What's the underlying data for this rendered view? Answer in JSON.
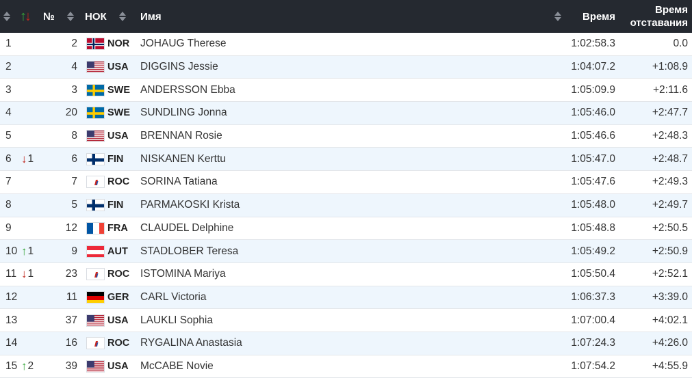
{
  "header": {
    "change_icon": "up-down-arrows-icon",
    "bib_label": "№",
    "noc_label": "НОК",
    "name_label": "Имя",
    "time_label": "Время",
    "gap_label_1": "Время",
    "gap_label_2": "отставания"
  },
  "colors": {
    "header_bg": "#252930",
    "row_alt": "#eef6fd",
    "up": "#35a639",
    "down": "#c0271e"
  },
  "rows": [
    {
      "rank": "1",
      "change": "",
      "dir": "",
      "bib": "2",
      "flag": "NOR",
      "noc": "NOR",
      "name": "JOHAUG Therese",
      "time": "1:02:58.3",
      "gap": "0.0"
    },
    {
      "rank": "2",
      "change": "",
      "dir": "",
      "bib": "4",
      "flag": "USA",
      "noc": "USA",
      "name": "DIGGINS Jessie",
      "time": "1:04:07.2",
      "gap": "+1:08.9"
    },
    {
      "rank": "3",
      "change": "",
      "dir": "",
      "bib": "3",
      "flag": "SWE",
      "noc": "SWE",
      "name": "ANDERSSON Ebba",
      "time": "1:05:09.9",
      "gap": "+2:11.6"
    },
    {
      "rank": "4",
      "change": "",
      "dir": "",
      "bib": "20",
      "flag": "SWE",
      "noc": "SWE",
      "name": "SUNDLING Jonna",
      "time": "1:05:46.0",
      "gap": "+2:47.7"
    },
    {
      "rank": "5",
      "change": "",
      "dir": "",
      "bib": "8",
      "flag": "USA",
      "noc": "USA",
      "name": "BRENNAN Rosie",
      "time": "1:05:46.6",
      "gap": "+2:48.3"
    },
    {
      "rank": "6",
      "change": "1",
      "dir": "down",
      "bib": "6",
      "flag": "FIN",
      "noc": "FIN",
      "name": "NISKANEN Kerttu",
      "time": "1:05:47.0",
      "gap": "+2:48.7"
    },
    {
      "rank": "7",
      "change": "",
      "dir": "",
      "bib": "7",
      "flag": "ROC",
      "noc": "ROC",
      "name": "SORINA Tatiana",
      "time": "1:05:47.6",
      "gap": "+2:49.3"
    },
    {
      "rank": "8",
      "change": "",
      "dir": "",
      "bib": "5",
      "flag": "FIN",
      "noc": "FIN",
      "name": "PARMAKOSKI Krista",
      "time": "1:05:48.0",
      "gap": "+2:49.7"
    },
    {
      "rank": "9",
      "change": "",
      "dir": "",
      "bib": "12",
      "flag": "FRA",
      "noc": "FRA",
      "name": "CLAUDEL Delphine",
      "time": "1:05:48.8",
      "gap": "+2:50.5"
    },
    {
      "rank": "10",
      "change": "1",
      "dir": "up",
      "bib": "9",
      "flag": "AUT",
      "noc": "AUT",
      "name": "STADLOBER Teresa",
      "time": "1:05:49.2",
      "gap": "+2:50.9"
    },
    {
      "rank": "11",
      "change": "1",
      "dir": "down",
      "bib": "23",
      "flag": "ROC",
      "noc": "ROC",
      "name": "ISTOMINA Mariya",
      "time": "1:05:50.4",
      "gap": "+2:52.1"
    },
    {
      "rank": "12",
      "change": "",
      "dir": "",
      "bib": "11",
      "flag": "GER",
      "noc": "GER",
      "name": "CARL Victoria",
      "time": "1:06:37.3",
      "gap": "+3:39.0"
    },
    {
      "rank": "13",
      "change": "",
      "dir": "",
      "bib": "37",
      "flag": "USA",
      "noc": "USA",
      "name": "LAUKLI Sophia",
      "time": "1:07:00.4",
      "gap": "+4:02.1"
    },
    {
      "rank": "14",
      "change": "",
      "dir": "",
      "bib": "16",
      "flag": "ROC",
      "noc": "ROC",
      "name": "RYGALINA Anastasia",
      "time": "1:07:24.3",
      "gap": "+4:26.0"
    },
    {
      "rank": "15",
      "change": "2",
      "dir": "up",
      "bib": "39",
      "flag": "USA",
      "noc": "USA",
      "name": "McCABE Novie",
      "time": "1:07:54.2",
      "gap": "+4:55.9"
    }
  ]
}
